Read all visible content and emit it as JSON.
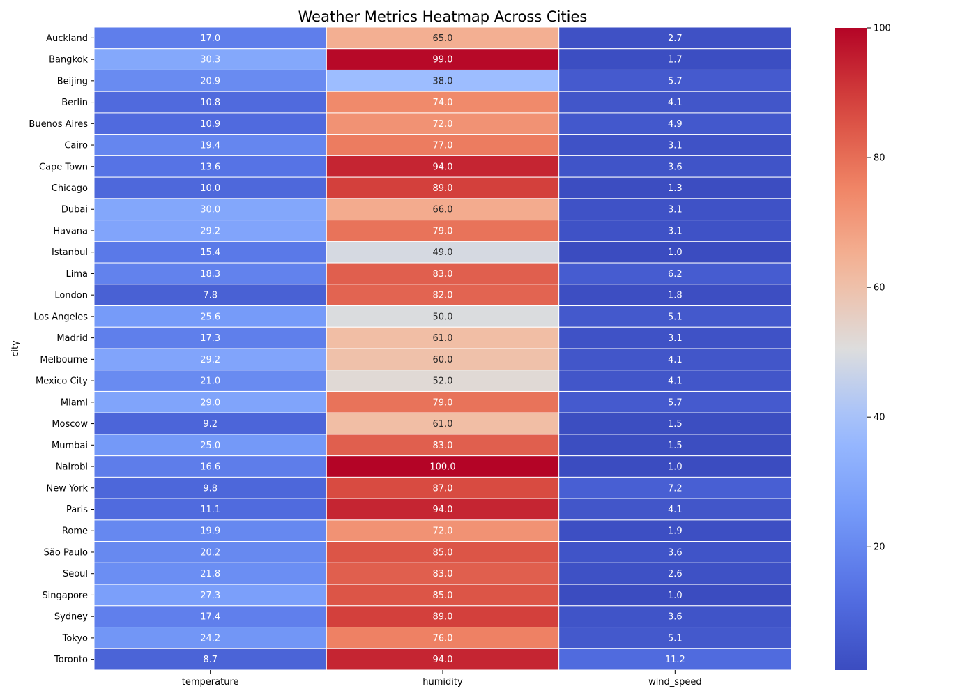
{
  "chart_data": {
    "type": "heatmap",
    "title": "Weather Metrics Heatmap Across Cities",
    "ylabel": "city",
    "xlabel": "",
    "columns": [
      "temperature",
      "humidity",
      "wind_speed"
    ],
    "rows": [
      "Auckland",
      "Bangkok",
      "Beijing",
      "Berlin",
      "Buenos Aires",
      "Cairo",
      "Cape Town",
      "Chicago",
      "Dubai",
      "Havana",
      "Istanbul",
      "Lima",
      "London",
      "Los Angeles",
      "Madrid",
      "Melbourne",
      "Mexico City",
      "Miami",
      "Moscow",
      "Mumbai",
      "Nairobi",
      "New York",
      "Paris",
      "Rome",
      "São Paulo",
      "Seoul",
      "Singapore",
      "Sydney",
      "Tokyo",
      "Toronto"
    ],
    "values": [
      [
        17.0,
        65.0,
        2.7
      ],
      [
        30.3,
        99.0,
        1.7
      ],
      [
        20.9,
        38.0,
        5.7
      ],
      [
        10.8,
        74.0,
        4.1
      ],
      [
        10.9,
        72.0,
        4.9
      ],
      [
        19.4,
        77.0,
        3.1
      ],
      [
        13.6,
        94.0,
        3.6
      ],
      [
        10.0,
        89.0,
        1.3
      ],
      [
        30.0,
        66.0,
        3.1
      ],
      [
        29.2,
        79.0,
        3.1
      ],
      [
        15.4,
        49.0,
        1.0
      ],
      [
        18.3,
        83.0,
        6.2
      ],
      [
        7.8,
        82.0,
        1.8
      ],
      [
        25.6,
        50.0,
        5.1
      ],
      [
        17.3,
        61.0,
        3.1
      ],
      [
        29.2,
        60.0,
        4.1
      ],
      [
        21.0,
        52.0,
        4.1
      ],
      [
        29.0,
        79.0,
        5.7
      ],
      [
        9.2,
        61.0,
        1.5
      ],
      [
        25.0,
        83.0,
        1.5
      ],
      [
        16.6,
        100.0,
        1.0
      ],
      [
        9.8,
        87.0,
        7.2
      ],
      [
        11.1,
        94.0,
        4.1
      ],
      [
        19.9,
        72.0,
        1.9
      ],
      [
        20.2,
        85.0,
        3.6
      ],
      [
        21.8,
        83.0,
        2.6
      ],
      [
        27.3,
        85.0,
        1.0
      ],
      [
        17.4,
        89.0,
        3.6
      ],
      [
        24.2,
        76.0,
        5.1
      ],
      [
        8.7,
        94.0,
        11.2
      ]
    ],
    "value_format": "0.0",
    "colormap": "coolwarm",
    "vmin": 1.0,
    "vmax": 100.0,
    "colorbar_ticks": [
      20,
      40,
      60,
      80,
      100
    ],
    "colors": {
      "cool_end": "#3b4cc0",
      "mid": "#dddddd",
      "warm_end": "#b40426",
      "cell_border": "#ffffff",
      "text_dark": "#262626",
      "text_light": "#ffffff"
    }
  }
}
